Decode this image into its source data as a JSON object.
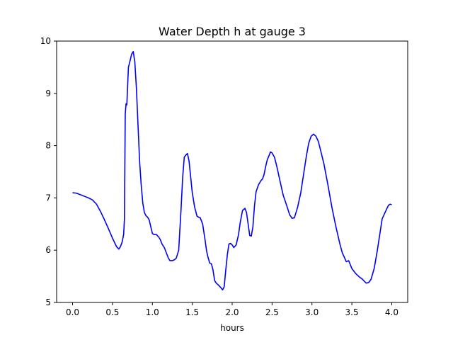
{
  "chart_data": {
    "type": "line",
    "title": "Water Depth h at gauge 3",
    "xlabel": "hours",
    "ylabel": "",
    "xlim": [
      -0.2,
      4.2
    ],
    "ylim": [
      5,
      10
    ],
    "xticks": [
      0.0,
      0.5,
      1.0,
      1.5,
      2.0,
      2.5,
      3.0,
      3.5,
      4.0
    ],
    "xtick_labels": [
      "0.0",
      "0.5",
      "1.0",
      "1.5",
      "2.0",
      "2.5",
      "3.0",
      "3.5",
      "4.0"
    ],
    "yticks": [
      5,
      6,
      7,
      8,
      9,
      10
    ],
    "ytick_labels": [
      "5",
      "6",
      "7",
      "8",
      "9",
      "10"
    ],
    "grid": false,
    "series": [
      {
        "color": "#0000ff",
        "x": [
          0.0,
          0.05,
          0.1,
          0.15,
          0.2,
          0.25,
          0.3,
          0.35,
          0.4,
          0.45,
          0.5,
          0.55,
          0.58,
          0.6,
          0.62,
          0.64,
          0.65,
          0.66,
          0.67,
          0.68,
          0.7,
          0.72,
          0.74,
          0.76,
          0.78,
          0.8,
          0.82,
          0.84,
          0.86,
          0.88,
          0.9,
          0.92,
          0.94,
          0.96,
          0.98,
          1.0,
          1.02,
          1.05,
          1.08,
          1.1,
          1.12,
          1.15,
          1.18,
          1.2,
          1.22,
          1.25,
          1.28,
          1.3,
          1.33,
          1.36,
          1.38,
          1.4,
          1.42,
          1.44,
          1.46,
          1.48,
          1.5,
          1.53,
          1.56,
          1.58,
          1.6,
          1.63,
          1.66,
          1.68,
          1.7,
          1.72,
          1.74,
          1.76,
          1.78,
          1.8,
          1.83,
          1.86,
          1.88,
          1.9,
          1.92,
          1.94,
          1.96,
          1.98,
          2.0,
          2.02,
          2.05,
          2.08,
          2.1,
          2.13,
          2.16,
          2.18,
          2.2,
          2.22,
          2.24,
          2.26,
          2.28,
          2.3,
          2.33,
          2.36,
          2.38,
          2.4,
          2.42,
          2.44,
          2.46,
          2.48,
          2.5,
          2.53,
          2.56,
          2.6,
          2.64,
          2.68,
          2.72,
          2.75,
          2.78,
          2.82,
          2.86,
          2.9,
          2.93,
          2.96,
          2.99,
          3.02,
          3.05,
          3.08,
          3.11,
          3.15,
          3.2,
          3.25,
          3.3,
          3.35,
          3.38,
          3.41,
          3.43,
          3.46,
          3.5,
          3.55,
          3.6,
          3.63,
          3.66,
          3.68,
          3.71,
          3.74,
          3.78,
          3.82,
          3.86,
          3.88,
          3.91,
          3.94,
          3.96,
          3.98,
          4.0
        ],
        "y": [
          7.1,
          7.09,
          7.06,
          7.03,
          7.0,
          6.96,
          6.88,
          6.74,
          6.58,
          6.41,
          6.23,
          6.07,
          6.02,
          6.07,
          6.15,
          6.3,
          6.6,
          8.6,
          8.8,
          8.78,
          9.5,
          9.62,
          9.75,
          9.8,
          9.6,
          9.1,
          8.4,
          7.7,
          7.25,
          6.9,
          6.72,
          6.66,
          6.63,
          6.58,
          6.45,
          6.32,
          6.3,
          6.3,
          6.25,
          6.2,
          6.12,
          6.05,
          5.93,
          5.85,
          5.8,
          5.8,
          5.82,
          5.85,
          6.0,
          6.8,
          7.4,
          7.78,
          7.82,
          7.85,
          7.7,
          7.4,
          7.1,
          6.82,
          6.65,
          6.63,
          6.62,
          6.5,
          6.2,
          5.98,
          5.85,
          5.75,
          5.74,
          5.62,
          5.42,
          5.37,
          5.33,
          5.28,
          5.24,
          5.3,
          5.62,
          5.92,
          6.12,
          6.13,
          6.1,
          6.05,
          6.1,
          6.3,
          6.52,
          6.76,
          6.8,
          6.72,
          6.5,
          6.28,
          6.27,
          6.45,
          6.85,
          7.12,
          7.25,
          7.33,
          7.36,
          7.45,
          7.6,
          7.73,
          7.8,
          7.88,
          7.86,
          7.78,
          7.6,
          7.32,
          7.05,
          6.87,
          6.68,
          6.61,
          6.62,
          6.82,
          7.1,
          7.5,
          7.8,
          8.05,
          8.18,
          8.22,
          8.18,
          8.08,
          7.9,
          7.65,
          7.25,
          6.82,
          6.45,
          6.12,
          5.95,
          5.85,
          5.78,
          5.8,
          5.65,
          5.55,
          5.48,
          5.45,
          5.4,
          5.37,
          5.38,
          5.44,
          5.65,
          6.0,
          6.4,
          6.6,
          6.7,
          6.8,
          6.86,
          6.88,
          6.87
        ]
      }
    ]
  }
}
